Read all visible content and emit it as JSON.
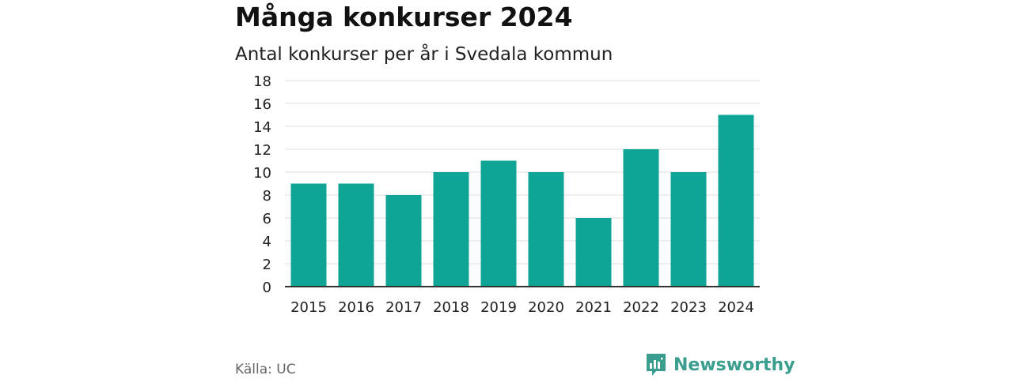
{
  "header": {
    "title": "Många konkurser 2024",
    "subtitle": "Antal konkurser per år i Svedala kommun"
  },
  "footer": {
    "source": "Källa: UC",
    "brand": "Newsworthy",
    "brand_icon": "newsworthy-logo-icon"
  },
  "colors": {
    "bar": "#0ea597",
    "grid": "#dddddd",
    "axis": "#333333",
    "brand": "#3a9e8f"
  },
  "chart_data": {
    "type": "bar",
    "title": "Många konkurser 2024",
    "subtitle": "Antal konkurser per år i Svedala kommun",
    "categories": [
      "2015",
      "2016",
      "2017",
      "2018",
      "2019",
      "2020",
      "2021",
      "2022",
      "2023",
      "2024"
    ],
    "values": [
      9,
      9,
      8,
      10,
      11,
      10,
      6,
      12,
      10,
      15
    ],
    "ylim": [
      0,
      18
    ],
    "yticks": [
      0,
      2,
      4,
      6,
      8,
      10,
      12,
      14,
      16,
      18
    ],
    "grid": true,
    "legend": "none"
  }
}
